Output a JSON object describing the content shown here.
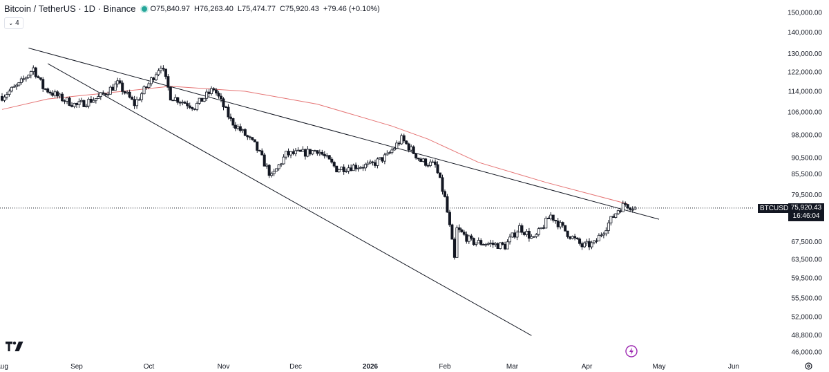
{
  "header": {
    "symbol": "Bitcoin / TetherUS · 1D · Binance",
    "open_label": "O",
    "open": "75,840.97",
    "high_label": "H",
    "high": "76,263.40",
    "low_label": "L",
    "low": "75,474.77",
    "close_label": "C",
    "close": "75,920.43",
    "change": "+79.46 (+0.10%)"
  },
  "indicator_toggle": {
    "count": "4"
  },
  "price_label": {
    "ticker": "BTCUSDT",
    "price": "75,920.43",
    "countdown": "16:46:04"
  },
  "colors": {
    "up": "#ffffff",
    "down": "#131722",
    "ma": "#e57373",
    "trend": "#131722",
    "grid_text": "#131722"
  },
  "chart_data": {
    "type": "candlestick",
    "y_axis_ticks": [
      "150,000.00",
      "140,000.00",
      "130,000.00",
      "122,000.00",
      "114,000.00",
      "106,000.00",
      "98,000.00",
      "90,500.00",
      "85,500.00",
      "79,500.00",
      "67,500.00",
      "63,500.00",
      "59,500.00",
      "55,500.00",
      "52,000.00",
      "48,800.00",
      "46,000.00"
    ],
    "y_tick_values": [
      150000,
      140000,
      130000,
      122000,
      114000,
      106000,
      98000,
      90500,
      85500,
      79500,
      67500,
      63500,
      59500,
      55500,
      52000,
      48800,
      46000
    ],
    "y_scale": "log",
    "x_axis_ticks": [
      {
        "label": "Aug",
        "date": "2025-08-01",
        "bold": false
      },
      {
        "label": "Sep",
        "date": "2025-09-01",
        "bold": false
      },
      {
        "label": "Oct",
        "date": "2025-10-01",
        "bold": false
      },
      {
        "label": "Nov",
        "date": "2025-11-01",
        "bold": false
      },
      {
        "label": "Dec",
        "date": "2025-12-01",
        "bold": false
      },
      {
        "label": "2026",
        "date": "2026-01-01",
        "bold": true
      },
      {
        "label": "Feb",
        "date": "2026-02-01",
        "bold": false
      },
      {
        "label": "Mar",
        "date": "2026-03-01",
        "bold": false
      },
      {
        "label": "Apr",
        "date": "2026-04-01",
        "bold": false
      },
      {
        "label": "May",
        "date": "2026-05-01",
        "bold": false
      },
      {
        "label": "Jun",
        "date": "2026-06-01",
        "bold": false
      }
    ],
    "last_price": 75920.43,
    "close_path": [
      [
        "2025-08-01",
        112000
      ],
      [
        "2025-08-08",
        116500
      ],
      [
        "2025-08-14",
        123500
      ],
      [
        "2025-08-18",
        115500
      ],
      [
        "2025-08-25",
        111500
      ],
      [
        "2025-09-01",
        108500
      ],
      [
        "2025-09-10",
        111500
      ],
      [
        "2025-09-18",
        117000
      ],
      [
        "2025-09-25",
        109000
      ],
      [
        "2025-10-01",
        117000
      ],
      [
        "2025-10-06",
        125000
      ],
      [
        "2025-10-10",
        112000
      ],
      [
        "2025-10-20",
        108000
      ],
      [
        "2025-10-28",
        115000
      ],
      [
        "2025-11-04",
        103000
      ],
      [
        "2025-11-14",
        94500
      ],
      [
        "2025-11-21",
        84500
      ],
      [
        "2025-11-27",
        91500
      ],
      [
        "2025-12-05",
        92000
      ],
      [
        "2025-12-10",
        93000
      ],
      [
        "2025-12-18",
        87000
      ],
      [
        "2025-12-25",
        87800
      ],
      [
        "2026-01-01",
        88000
      ],
      [
        "2026-01-08",
        91000
      ],
      [
        "2026-01-14",
        96500
      ],
      [
        "2026-01-22",
        89500
      ],
      [
        "2026-01-28",
        88000
      ],
      [
        "2026-02-01",
        78500
      ],
      [
        "2026-02-05",
        63500
      ],
      [
        "2026-02-06",
        70500
      ],
      [
        "2026-02-12",
        67500
      ],
      [
        "2026-02-20",
        67000
      ],
      [
        "2026-02-26",
        66500
      ],
      [
        "2026-03-04",
        71000
      ],
      [
        "2026-03-10",
        68000
      ],
      [
        "2026-03-17",
        74000
      ],
      [
        "2026-03-24",
        69500
      ],
      [
        "2026-03-30",
        66500
      ],
      [
        "2026-04-04",
        67000
      ],
      [
        "2026-04-10",
        72000
      ],
      [
        "2026-04-14",
        75500
      ],
      [
        "2026-04-17",
        77000
      ],
      [
        "2026-04-21",
        75920
      ]
    ],
    "ma_line": [
      [
        "2025-08-01",
        107000
      ],
      [
        "2025-08-20",
        111000
      ],
      [
        "2025-09-10",
        113000
      ],
      [
        "2025-10-10",
        116000
      ],
      [
        "2025-11-10",
        114000
      ],
      [
        "2025-12-10",
        109000
      ],
      [
        "2026-01-10",
        101000
      ],
      [
        "2026-01-25",
        96500
      ],
      [
        "2026-02-15",
        89000
      ],
      [
        "2026-03-15",
        83000
      ],
      [
        "2026-04-18",
        77000
      ]
    ],
    "trendlines": [
      {
        "from": [
          "2025-08-12",
          132500
        ],
        "to": [
          "2026-05-01",
          73000
        ]
      },
      {
        "from": [
          "2025-08-20",
          125500
        ],
        "to": [
          "2026-03-09",
          48700
        ]
      }
    ]
  }
}
